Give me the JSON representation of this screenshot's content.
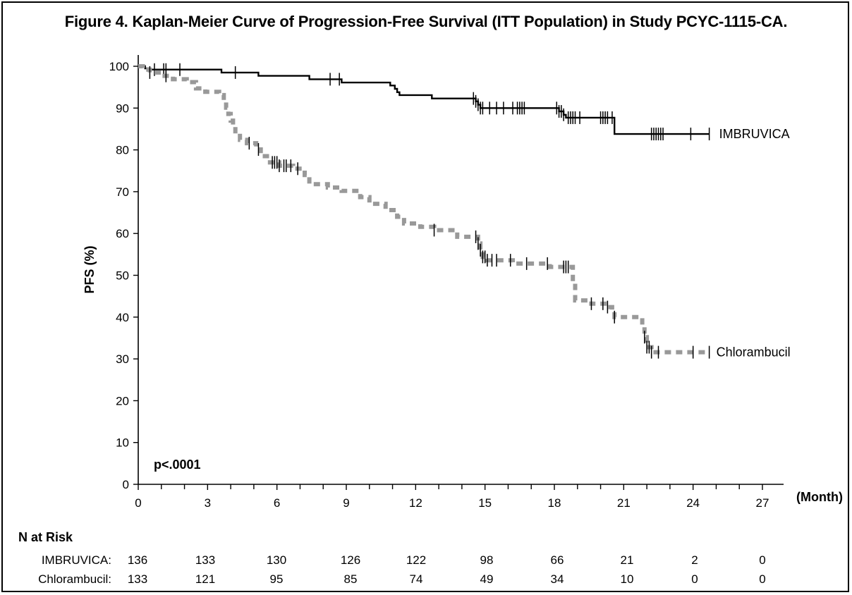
{
  "chart_data": {
    "type": "line",
    "title": "Figure 4. Kaplan-Meier Curve of Progression-Free Survival (ITT Population) in Study PCYC-1115-CA.",
    "xlabel": "(Month)",
    "ylabel": "PFS (%)",
    "xlim": [
      0,
      27
    ],
    "ylim": [
      0,
      100
    ],
    "x_ticks": [
      "0",
      "3",
      "6",
      "9",
      "12",
      "15",
      "18",
      "21",
      "24",
      "27"
    ],
    "y_ticks": [
      "0",
      "10",
      "20",
      "30",
      "40",
      "50",
      "60",
      "70",
      "80",
      "90",
      "100"
    ],
    "annotation": "p<.0001",
    "series": [
      {
        "name": "IMBRUVICA",
        "style": "solid",
        "color": "#000000",
        "x": [
          0,
          0.3,
          0.5,
          3.6,
          5.2,
          7.4,
          8.8,
          10.9,
          11.1,
          11.2,
          11.3,
          12.7,
          14.6,
          14.7,
          14.8,
          18.2,
          18.4,
          18.5,
          20.6,
          24.7
        ],
        "y": [
          100,
          99.5,
          99.2,
          98.5,
          97.7,
          96.9,
          96.1,
          95.4,
          94.6,
          93.8,
          93.1,
          92.3,
          91.6,
          90.8,
          90.0,
          89.2,
          88.4,
          87.7,
          83.8,
          83.8
        ],
        "censor_x": [
          0.7,
          1.1,
          1.2,
          1.8,
          4.2,
          8.3,
          8.7,
          14.5,
          14.6,
          14.7,
          14.8,
          14.9,
          15.2,
          15.5,
          15.8,
          16.2,
          16.4,
          16.5,
          16.6,
          16.7,
          18.1,
          18.2,
          18.3,
          18.4,
          18.6,
          18.7,
          18.8,
          18.9,
          19.1,
          20.0,
          20.1,
          20.2,
          20.3,
          20.5,
          22.2,
          22.3,
          22.4,
          22.5,
          22.6,
          22.7,
          23.9,
          24.7
        ]
      },
      {
        "name": "Chlorambucil",
        "style": "dashed",
        "color": "#999999",
        "x": [
          0,
          0.2,
          0.5,
          1.0,
          1.5,
          2.1,
          2.5,
          2.9,
          3.5,
          3.7,
          3.8,
          3.9,
          4.0,
          4.1,
          4.2,
          4.4,
          4.7,
          5.1,
          5.3,
          5.7,
          6.1,
          6.7,
          7.2,
          7.4,
          8.2,
          8.8,
          9.6,
          10.0,
          10.7,
          11.2,
          11.5,
          12.2,
          12.8,
          13.8,
          14.7,
          14.8,
          14.9,
          15.0,
          15.1,
          15.4,
          16.2,
          17.0,
          17.8,
          18.4,
          18.8,
          18.9,
          19.6,
          20.3,
          20.5,
          20.6,
          21.6,
          21.8,
          21.9,
          22.0,
          22.2,
          24.7
        ],
        "y": [
          100,
          99.2,
          98.5,
          97.7,
          96.9,
          96.2,
          94.7,
          93.9,
          93.1,
          91.6,
          90.1,
          88.6,
          87.0,
          85.5,
          83.9,
          82.4,
          81.6,
          80.1,
          78.5,
          77.0,
          76.2,
          75.5,
          74.0,
          71.8,
          71.0,
          70.2,
          68.7,
          67.1,
          65.6,
          64.0,
          62.4,
          61.6,
          60.8,
          59.2,
          57.6,
          56.0,
          54.4,
          54.4,
          53.6,
          53.6,
          52.8,
          52.8,
          52.0,
          52.0,
          48.0,
          44.0,
          43.2,
          42.4,
          41.6,
          40.0,
          40.0,
          37.6,
          35.2,
          32.8,
          31.6,
          31.6
        ],
        "censor_x": [
          0.5,
          1.2,
          4.8,
          5.2,
          5.8,
          5.9,
          6.0,
          6.1,
          6.3,
          6.4,
          6.6,
          6.9,
          12.8,
          14.6,
          14.7,
          14.8,
          14.9,
          15.0,
          15.1,
          15.3,
          15.5,
          16.1,
          16.8,
          17.7,
          18.4,
          18.5,
          18.6,
          19.6,
          20.1,
          20.3,
          20.6,
          21.9,
          22.0,
          22.1,
          22.2,
          22.5,
          24.0,
          24.7
        ]
      }
    ],
    "n_at_risk": {
      "header": "N at Risk",
      "rows": [
        {
          "label": "IMBRUVICA:",
          "values": [
            "136",
            "133",
            "130",
            "126",
            "122",
            "98",
            "66",
            "21",
            "2",
            "0"
          ]
        },
        {
          "label": "Chlorambucil:",
          "values": [
            "133",
            "121",
            "95",
            "85",
            "74",
            "49",
            "34",
            "10",
            "0",
            "0"
          ]
        }
      ]
    }
  }
}
